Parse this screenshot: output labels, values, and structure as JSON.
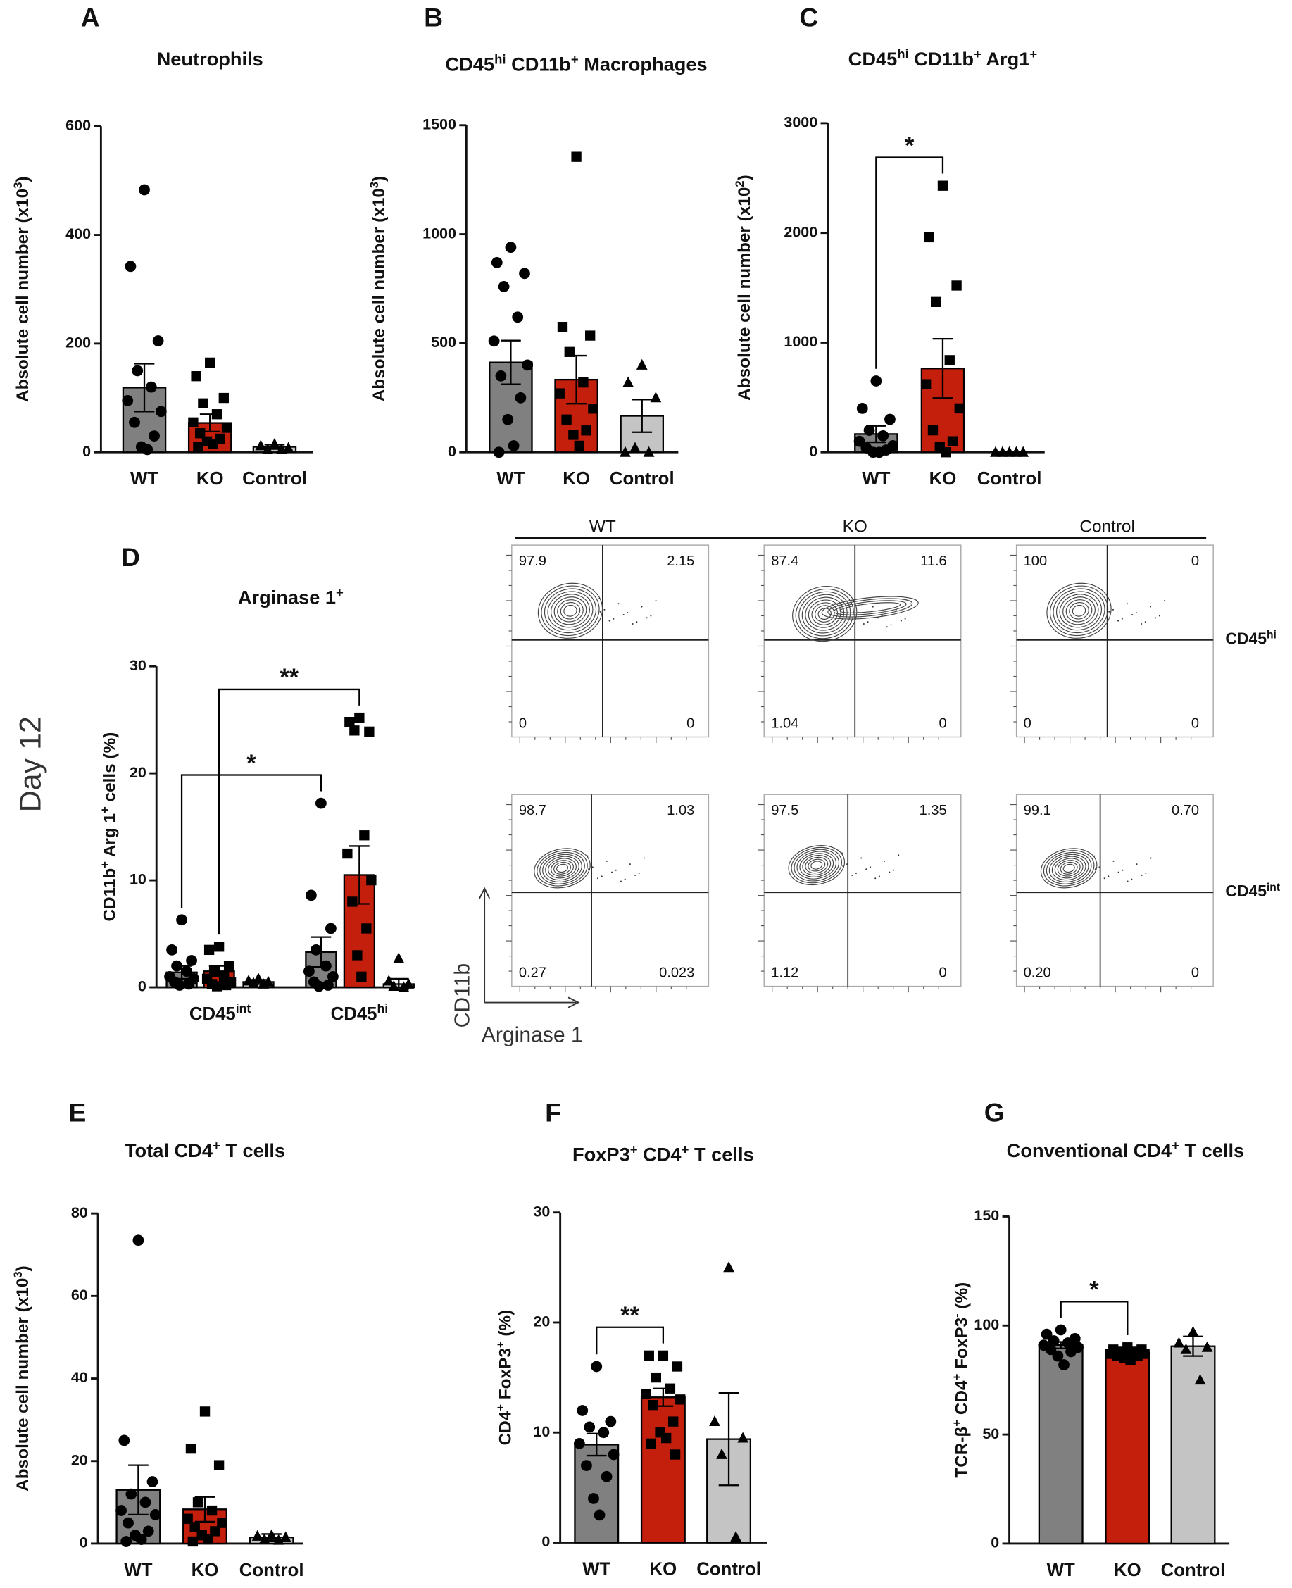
{
  "chart_data": [
    {
      "type": "bar",
      "panel": "A",
      "title": [
        "Neutrophils"
      ],
      "ylabel": [
        "Absolute cell number (x10",
        {
          "sup": "3"
        },
        ")"
      ],
      "categories": [
        "WT",
        "KO",
        "Control"
      ],
      "colors": [
        "#808080",
        "#c41e0c",
        "#c4c4c4"
      ],
      "markers": [
        "circle",
        "square",
        "triangle"
      ],
      "values": [
        119,
        54,
        10
      ],
      "errors": [
        44,
        16,
        4
      ],
      "points": [
        [
          483,
          342,
          205,
          150,
          120,
          95,
          75,
          55,
          30,
          10,
          5
        ],
        [
          165,
          140,
          100,
          90,
          70,
          55,
          45,
          35,
          25,
          20,
          15,
          10
        ],
        [
          15,
          12,
          8,
          5,
          5
        ]
      ],
      "ylim": [
        0,
        600
      ],
      "yticks": [
        0,
        200,
        400,
        600
      ],
      "annotations": []
    },
    {
      "type": "bar",
      "panel": "B",
      "title": [
        "CD45",
        {
          "sup": "hi"
        },
        " CD11b",
        {
          "sup": "+"
        },
        " Macrophages"
      ],
      "ylabel": [
        "Absolute cell number (x10",
        {
          "sup": "3"
        },
        ")"
      ],
      "categories": [
        "WT",
        "KO",
        "Control"
      ],
      "colors": [
        "#808080",
        "#c41e0c",
        "#c4c4c4"
      ],
      "markers": [
        "circle",
        "square",
        "triangle"
      ],
      "values": [
        412,
        333,
        167
      ],
      "errors": [
        100,
        110,
        75
      ],
      "points": [
        [
          940,
          870,
          820,
          760,
          620,
          510,
          400,
          350,
          250,
          150,
          30,
          0
        ],
        [
          1355,
          575,
          535,
          460,
          320,
          270,
          200,
          150,
          100,
          80,
          30
        ],
        [
          400,
          320,
          250,
          20,
          0,
          0
        ]
      ],
      "ylim": [
        0,
        1500
      ],
      "yticks": [
        0,
        500,
        1000,
        1500
      ],
      "annotations": []
    },
    {
      "type": "bar",
      "panel": "C",
      "title": [
        "CD45",
        {
          "sup": "hi"
        },
        " CD11b",
        {
          "sup": "+"
        },
        " Arg1",
        {
          "sup": "+"
        }
      ],
      "ylabel": [
        "Absolute cell number (x10",
        {
          "sup": "2"
        },
        ")"
      ],
      "categories": [
        "WT",
        "KO",
        "Control"
      ],
      "colors": [
        "#808080",
        "#c41e0c",
        "#c4c4c4"
      ],
      "markers": [
        "circle",
        "square",
        "triangle"
      ],
      "values": [
        166,
        764,
        0
      ],
      "errors": [
        75,
        270,
        0
      ],
      "points": [
        [
          650,
          400,
          300,
          200,
          150,
          100,
          60,
          40,
          20,
          0,
          0
        ],
        [
          2430,
          1960,
          1520,
          1370,
          840,
          620,
          400,
          200,
          100,
          50,
          0
        ],
        [
          0,
          0,
          0,
          0,
          0
        ]
      ],
      "ylim": [
        0,
        3000
      ],
      "yticks": [
        0,
        1000,
        2000,
        3000
      ],
      "annotations": [
        {
          "label": "*",
          "between": [
            0,
            1
          ]
        }
      ]
    },
    {
      "type": "grouped_bar",
      "panel": "D",
      "title": [
        "Arginase 1",
        {
          "sup": "+"
        }
      ],
      "ylabel": [
        "CD11b",
        {
          "sup": "+"
        },
        " Arg 1",
        {
          "sup": "+"
        },
        " cells (%)"
      ],
      "categories": [
        [
          "CD45",
          {
            "sup": "int"
          }
        ],
        [
          "CD45",
          {
            "sup": "hi"
          }
        ]
      ],
      "series": [
        {
          "color": "#808080",
          "marker": "circle",
          "values": [
            1.4,
            3.3
          ],
          "errors": [
            0.6,
            1.4
          ],
          "points": [
            [
              6.3,
              3.5,
              2.5,
              2,
              1.5,
              1,
              0.8,
              0.5,
              0.3,
              0.2
            ],
            [
              17.2,
              8.6,
              5.5,
              3.5,
              2,
              1.5,
              1,
              0.5,
              0.2,
              0.1
            ]
          ]
        },
        {
          "color": "#c41e0c",
          "marker": "square",
          "values": [
            1.5,
            10.5
          ],
          "errors": [
            0.5,
            2.7
          ],
          "points": [
            [
              3.8,
              3.5,
              2,
              1.5,
              1,
              0.8,
              0.5,
              0.3,
              0.2,
              0.1
            ],
            [
              25.2,
              24.8,
              23.9,
              24,
              14.2,
              12.5,
              10,
              8,
              5.5,
              3,
              1
            ]
          ]
        },
        {
          "color": "#c4c4c4",
          "marker": "triangle",
          "values": [
            0.5,
            0.3
          ],
          "errors": [
            0.2,
            0.5
          ],
          "points": [
            [
              0.8,
              0.6,
              0.5,
              0.4,
              0.3
            ],
            [
              2.7,
              0.6,
              0.3,
              0.1,
              0
            ]
          ]
        }
      ],
      "ylim": [
        0,
        30
      ],
      "yticks": [
        0,
        10,
        20,
        30
      ],
      "annotations": [
        {
          "label": "*",
          "between": [
            [
              0,
              0
            ],
            [
              1,
              0
            ]
          ]
        },
        {
          "label": "**",
          "between": [
            [
              0,
              1
            ],
            [
              1,
              1
            ]
          ]
        }
      ]
    },
    {
      "type": "bar",
      "panel": "E",
      "title": [
        "Total CD4",
        {
          "sup": "+"
        },
        " T cells"
      ],
      "ylabel": [
        "Absolute cell number (x10",
        {
          "sup": "3"
        },
        ")"
      ],
      "categories": [
        "WT",
        "KO",
        "Control"
      ],
      "colors": [
        "#808080",
        "#c41e0c",
        "#c4c4c4"
      ],
      "markers": [
        "circle",
        "square",
        "triangle"
      ],
      "values": [
        13,
        8.3,
        1.5
      ],
      "errors": [
        6,
        3,
        0.8
      ],
      "points": [
        [
          73.5,
          25,
          15,
          12,
          10,
          8,
          7,
          5,
          3,
          2,
          1,
          0.5
        ],
        [
          32,
          23,
          19,
          10,
          8,
          6,
          5,
          4,
          3,
          2,
          1,
          0.5
        ],
        [
          2,
          1.8,
          1.5,
          1,
          0.8
        ]
      ],
      "ylim": [
        0,
        80
      ],
      "yticks": [
        0,
        20,
        40,
        60,
        80
      ],
      "annotations": []
    },
    {
      "type": "bar",
      "panel": "F",
      "title": [
        "FoxP3",
        {
          "sup": "+"
        },
        " CD4",
        {
          "sup": "+"
        },
        " T cells"
      ],
      "ylabel": [
        "CD4",
        {
          "sup": "+"
        },
        " FoxP3",
        {
          "sup": "+"
        },
        " (%)"
      ],
      "categories": [
        "WT",
        "KO",
        "Control"
      ],
      "colors": [
        "#808080",
        "#c41e0c",
        "#c4c4c4"
      ],
      "markers": [
        "circle",
        "square",
        "triangle"
      ],
      "values": [
        8.9,
        13.2,
        9.4
      ],
      "errors": [
        1.0,
        0.8,
        4.2
      ],
      "points": [
        [
          16,
          12,
          11,
          10.5,
          10,
          9,
          8,
          7,
          6,
          4,
          2.5
        ],
        [
          17,
          17,
          16,
          15,
          14,
          13.5,
          13,
          12.5,
          11,
          10,
          9.5,
          9,
          8
        ],
        [
          25,
          11,
          9.5,
          8,
          0.5
        ]
      ],
      "ylim": [
        0,
        30
      ],
      "yticks": [
        0,
        10,
        20,
        30
      ],
      "annotations": [
        {
          "label": "**",
          "between": [
            0,
            1
          ]
        }
      ]
    },
    {
      "type": "bar",
      "panel": "G",
      "title": [
        "Conventional CD4",
        {
          "sup": "+"
        },
        " T cells"
      ],
      "ylabel": [
        "TCR-β",
        {
          "sup": "+"
        },
        " CD4",
        {
          "sup": "+"
        },
        " FoxP3",
        {
          "sup": "-"
        },
        " (%)"
      ],
      "categories": [
        "WT",
        "KO",
        "Control"
      ],
      "colors": [
        "#808080",
        "#c41e0c",
        "#c4c4c4"
      ],
      "markers": [
        "circle",
        "square",
        "triangle"
      ],
      "values": [
        91,
        87.5,
        90.5
      ],
      "errors": [
        1.5,
        0.7,
        4.5
      ],
      "points": [
        [
          98,
          96,
          94,
          93,
          92,
          91,
          90,
          89,
          88,
          86,
          82
        ],
        [
          90,
          89,
          89,
          88,
          88,
          87,
          87,
          86,
          86,
          85,
          84
        ],
        [
          97,
          92,
          90,
          89,
          75
        ]
      ],
      "ylim": [
        0,
        150
      ],
      "yticks": [
        0,
        50,
        100,
        150
      ],
      "annotations": [
        {
          "label": "*",
          "between": [
            0,
            1
          ]
        }
      ]
    }
  ],
  "flow": {
    "side_label": "Day 12",
    "columns": [
      "WT",
      "KO",
      "Control"
    ],
    "rows": [
      [
        "CD45",
        {
          "sup": "hi"
        }
      ],
      [
        "CD45",
        {
          "sup": "int"
        }
      ]
    ],
    "quadrants": [
      [
        [
          "97.9",
          "2.15",
          "0",
          "0"
        ],
        [
          "87.4",
          "11.6",
          "1.04",
          "0"
        ],
        [
          "100",
          "0",
          "0",
          "0"
        ]
      ],
      [
        [
          "98.7",
          "1.03",
          "0.27",
          "0.023"
        ],
        [
          "97.5",
          "1.35",
          "1.12",
          "0"
        ],
        [
          "99.1",
          "0.70",
          "0.20",
          "0"
        ]
      ]
    ],
    "y_axis": "CD11b",
    "x_axis": "Arginase 1"
  }
}
